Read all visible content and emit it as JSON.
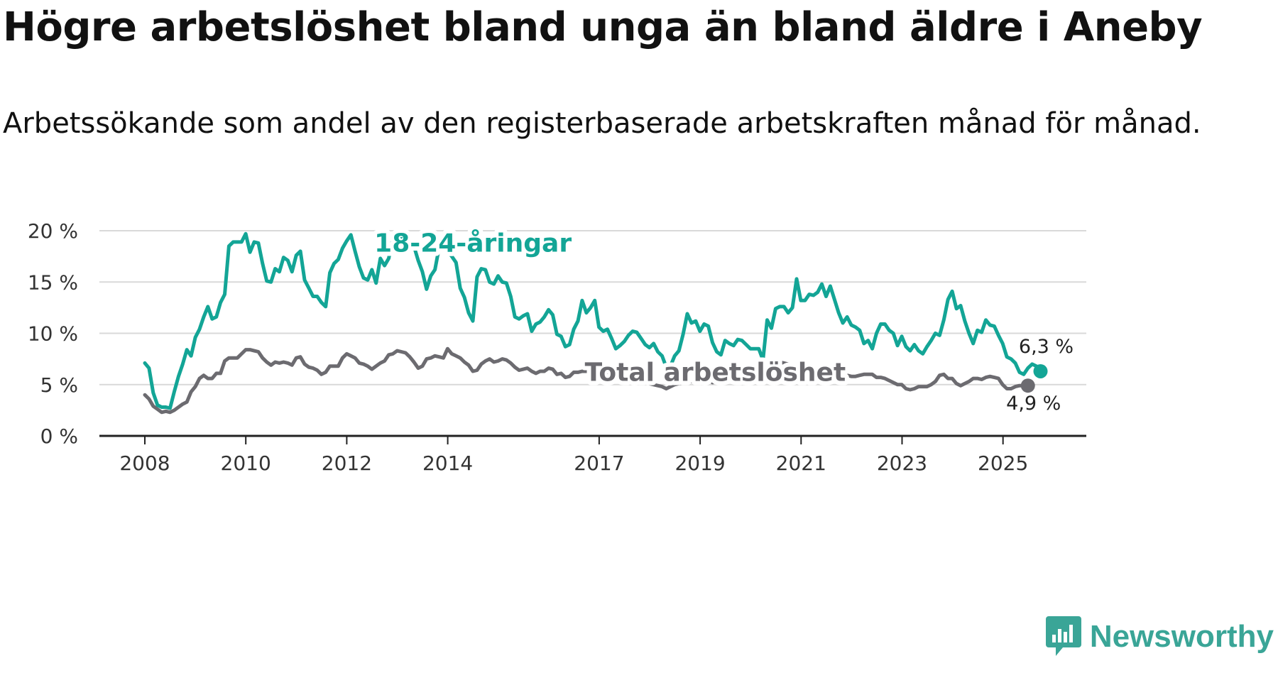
{
  "header": {
    "title": "Högre arbetslöshet bland unga än bland äldre i Aneby",
    "subtitle": "Arbetssökande som andel av den registerbaserade arbetskraften månad för månad."
  },
  "brand": {
    "name": "Newsworthy",
    "color": "#3aa597"
  },
  "chart_data": {
    "type": "line",
    "title": "Högre arbetslöshet bland unga än bland äldre i Aneby",
    "subtitle": "Arbetssökande som andel av den registerbaserade arbetskraften månad för månad.",
    "xlabel": "",
    "ylabel": "",
    "x_start": 2008.0,
    "x_step": 0.0833,
    "xlim": [
      2007.1,
      2026.65
    ],
    "ylim": [
      0,
      20
    ],
    "yticks": [
      0,
      5,
      10,
      15,
      20
    ],
    "ytick_labels": [
      "0 %",
      "5 %",
      "10 %",
      "15 %",
      "20 %"
    ],
    "xticks": [
      2008,
      2010,
      2012,
      2014,
      2017,
      2019,
      2021,
      2023,
      2025
    ],
    "xtick_labels": [
      "2008",
      "2010",
      "2012",
      "2014",
      "2017",
      "2019",
      "2021",
      "2023",
      "2025"
    ],
    "grid": true,
    "series": [
      {
        "name": "18-24-åringar",
        "color": "#13a596",
        "end_label": "6,3 %",
        "values": [
          7.1,
          6.6,
          4.2,
          3.0,
          2.8,
          2.8,
          2.7,
          4.3,
          5.8,
          7.0,
          8.4,
          7.8,
          9.6,
          10.4,
          11.6,
          12.6,
          11.4,
          11.6,
          13.0,
          13.8,
          18.5,
          18.9,
          18.9,
          18.9,
          19.7,
          17.9,
          18.9,
          18.8,
          16.8,
          15.1,
          15.0,
          16.3,
          16.0,
          17.4,
          17.1,
          16.0,
          17.6,
          18.0,
          15.2,
          14.4,
          13.6,
          13.6,
          13.0,
          12.6,
          15.9,
          16.8,
          17.2,
          18.3,
          19.0,
          19.6,
          18.0,
          16.5,
          15.4,
          15.2,
          16.2,
          14.9,
          17.3,
          16.6,
          17.3,
          19.3,
          19.9,
          19.5,
          18.9,
          18.6,
          18.5,
          17.1,
          16.0,
          14.3,
          15.6,
          16.2,
          18.4,
          18.6,
          18.0,
          17.5,
          16.9,
          14.4,
          13.5,
          12.0,
          11.2,
          15.5,
          16.3,
          16.2,
          15.0,
          14.8,
          15.6,
          15.0,
          14.9,
          13.6,
          11.6,
          11.4,
          11.7,
          11.9,
          10.2,
          10.9,
          11.1,
          11.6,
          12.3,
          11.8,
          9.9,
          9.7,
          8.7,
          8.9,
          10.4,
          11.2,
          13.2,
          12.0,
          12.5,
          13.2,
          10.6,
          10.2,
          10.4,
          9.5,
          8.5,
          8.8,
          9.2,
          9.8,
          10.2,
          10.1,
          9.5,
          8.9,
          8.6,
          9.0,
          8.2,
          7.8,
          6.7,
          6.8,
          7.8,
          8.3,
          9.9,
          11.9,
          11.0,
          11.2,
          10.2,
          10.9,
          10.7,
          9.1,
          8.2,
          7.9,
          9.3,
          9.0,
          8.8,
          9.4,
          9.3,
          8.9,
          8.5,
          8.5,
          8.5,
          7.4,
          11.3,
          10.5,
          12.4,
          12.6,
          12.6,
          12.0,
          12.5,
          15.3,
          13.2,
          13.2,
          13.8,
          13.7,
          14.0,
          14.8,
          13.6,
          14.6,
          13.3,
          12.0,
          11.0,
          11.6,
          10.8,
          10.6,
          10.3,
          9.0,
          9.3,
          8.5,
          10.0,
          10.9,
          10.9,
          10.3,
          10.0,
          8.8,
          9.7,
          8.7,
          8.3,
          8.9,
          8.3,
          8.0,
          8.7,
          9.3,
          10.0,
          9.8,
          11.3,
          13.3,
          14.1,
          12.4,
          12.7,
          11.2,
          10.0,
          9.0,
          10.3,
          10.1,
          11.3,
          10.8,
          10.7,
          9.8,
          9.0,
          7.7,
          7.5,
          7.1,
          6.2,
          6.0,
          6.6,
          7.0,
          6.8,
          6.3
        ]
      },
      {
        "name": "Total arbetslöshet",
        "color": "#6c6b70",
        "end_label": "4,9 %",
        "values": [
          4.0,
          3.6,
          2.9,
          2.6,
          2.3,
          2.4,
          2.3,
          2.5,
          2.8,
          3.1,
          3.3,
          4.3,
          4.8,
          5.6,
          5.9,
          5.6,
          5.6,
          6.1,
          6.1,
          7.3,
          7.6,
          7.6,
          7.6,
          8.0,
          8.4,
          8.4,
          8.3,
          8.2,
          7.6,
          7.2,
          6.9,
          7.2,
          7.1,
          7.2,
          7.1,
          6.9,
          7.6,
          7.7,
          7.0,
          6.7,
          6.6,
          6.4,
          6.0,
          6.2,
          6.8,
          6.8,
          6.8,
          7.6,
          8.0,
          7.8,
          7.6,
          7.1,
          7.0,
          6.8,
          6.5,
          6.8,
          7.1,
          7.3,
          7.9,
          8.0,
          8.3,
          8.2,
          8.1,
          7.7,
          7.2,
          6.6,
          6.8,
          7.5,
          7.6,
          7.8,
          7.7,
          7.6,
          8.5,
          8.0,
          7.8,
          7.6,
          7.2,
          6.9,
          6.3,
          6.4,
          7.0,
          7.3,
          7.5,
          7.2,
          7.3,
          7.5,
          7.4,
          7.1,
          6.7,
          6.4,
          6.5,
          6.6,
          6.3,
          6.1,
          6.3,
          6.3,
          6.6,
          6.5,
          6.0,
          6.1,
          5.7,
          5.8,
          6.2,
          6.2,
          6.3,
          6.3,
          6.3,
          6.3,
          6.5,
          6.1,
          6.1,
          6.0,
          6.0,
          5.8,
          5.7,
          5.8,
          5.7,
          5.6,
          5.4,
          5.3,
          5.1,
          5.0,
          4.9,
          4.8,
          4.6,
          4.8,
          5.0,
          5.1,
          5.2,
          5.3,
          5.3,
          5.6,
          5.7,
          5.7,
          5.5,
          5.2,
          5.3,
          5.5,
          5.6,
          5.6,
          5.7,
          5.8,
          5.8,
          5.9,
          6.0,
          5.8,
          6.7,
          6.9,
          7.0,
          7.1,
          7.2,
          7.2,
          7.1,
          7.0,
          6.8,
          6.7,
          6.6,
          6.6,
          6.6,
          6.7,
          6.6,
          6.5,
          6.4,
          6.3,
          6.1,
          6.1,
          6.0,
          5.9,
          5.8,
          5.8,
          5.9,
          6.0,
          6.0,
          6.0,
          5.7,
          5.7,
          5.6,
          5.4,
          5.2,
          5.0,
          5.0,
          4.6,
          4.5,
          4.6,
          4.8,
          4.8,
          4.8,
          5.0,
          5.3,
          5.9,
          6.0,
          5.6,
          5.6,
          5.1,
          4.9,
          5.1,
          5.3,
          5.6,
          5.6,
          5.5,
          5.7,
          5.8,
          5.7,
          5.6,
          5.0,
          4.6,
          4.6,
          4.8,
          4.9,
          4.9,
          4.9
        ]
      }
    ],
    "annotations": [
      {
        "text": "18-24-åringar",
        "series": "18-24-åringar",
        "x": 2014.5,
        "y": 18.8
      },
      {
        "text": "Total arbetslöshet",
        "series": "Total arbetslöshet",
        "x": 2019.3,
        "y": 6.2
      }
    ]
  }
}
